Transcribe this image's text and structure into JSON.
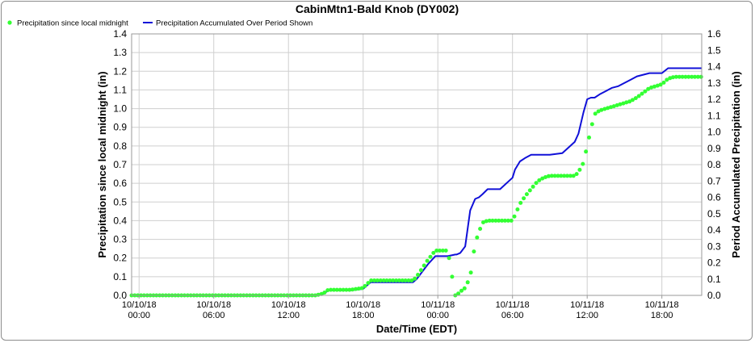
{
  "chart_data": {
    "type": "line",
    "title": "CabinMtn1-Bald Knob (DY002)",
    "xlabel": "Date/Time (EDT)",
    "ylabel_left": "Precipitation since local midnight (in)",
    "ylabel_right": "Period Accumulated Precipitation (in)",
    "ylim_left": [
      0,
      1.4
    ],
    "ylim_right": [
      0,
      1.6
    ],
    "yticks_left": [
      "0.0",
      "0.1",
      "0.2",
      "0.3",
      "0.4",
      "0.5",
      "0.6",
      "0.7",
      "0.8",
      "0.9",
      "1.0",
      "1.1",
      "1.2",
      "1.3",
      "1.4"
    ],
    "yticks_right": [
      "0.0",
      "0.1",
      "0.2",
      "0.3",
      "0.4",
      "0.5",
      "0.6",
      "0.7",
      "0.8",
      "0.9",
      "1.0",
      "1.1",
      "1.2",
      "1.3",
      "1.4",
      "1.5",
      "1.6"
    ],
    "xlim_hours": [
      -0.6,
      45.2
    ],
    "xticks": [
      {
        "hour": 0,
        "date": "10/10/18",
        "time": "00:00"
      },
      {
        "hour": 6,
        "date": "10/10/18",
        "time": "06:00"
      },
      {
        "hour": 12,
        "date": "10/10/18",
        "time": "12:00"
      },
      {
        "hour": 18,
        "date": "10/10/18",
        "time": "18:00"
      },
      {
        "hour": 24,
        "date": "10/11/18",
        "time": "00:00"
      },
      {
        "hour": 30,
        "date": "10/11/18",
        "time": "06:00"
      },
      {
        "hour": 36,
        "date": "10/11/18",
        "time": "12:00"
      },
      {
        "hour": 42,
        "date": "10/11/18",
        "time": "18:00"
      }
    ],
    "grid": true,
    "legend_position": "top-left",
    "series": [
      {
        "name": "Precipitation since local midnight",
        "axis": "left",
        "style": "points",
        "color": "#33ff33",
        "x": [
          -0.6,
          0,
          3,
          6,
          9,
          14.2,
          14.8,
          15.2,
          16,
          17,
          18,
          18.3,
          18.6,
          19,
          20,
          21,
          22,
          22.3,
          22.7,
          23.2,
          23.8,
          24,
          24.4,
          24.8,
          25.4,
          25.5,
          25.8,
          26.2,
          26.6,
          27,
          27.3,
          27.6,
          28,
          28.5,
          29,
          30,
          30.2,
          30.6,
          31,
          31.5,
          32,
          32.5,
          33,
          34,
          35,
          35.3,
          35.7,
          36,
          36.3,
          36.6,
          37,
          37.5,
          38,
          38.5,
          39,
          39.5,
          40,
          41,
          42,
          42.5,
          43,
          44,
          45.2
        ],
        "y": [
          0,
          0,
          0,
          0,
          0,
          0,
          0.01,
          0.03,
          0.03,
          0.03,
          0.04,
          0.06,
          0.08,
          0.08,
          0.08,
          0.08,
          0.08,
          0.1,
          0.14,
          0.19,
          0.24,
          0.24,
          0.24,
          0.24,
          0,
          0,
          0.02,
          0.04,
          0.1,
          0.28,
          0.34,
          0.39,
          0.4,
          0.4,
          0.4,
          0.4,
          0.43,
          0.49,
          0.53,
          0.57,
          0.61,
          0.63,
          0.64,
          0.64,
          0.64,
          0.66,
          0.71,
          0.8,
          0.89,
          0.97,
          0.99,
          1.0,
          1.01,
          1.02,
          1.03,
          1.04,
          1.06,
          1.11,
          1.13,
          1.16,
          1.17,
          1.17,
          1.17
        ]
      },
      {
        "name": "Precipitation Accumulated Over Period Shown",
        "axis": "right",
        "style": "line",
        "color": "#1010d8",
        "x": [
          -0.6,
          0,
          3,
          6,
          9,
          14.2,
          14.8,
          15.2,
          16,
          17,
          18,
          18.3,
          18.6,
          19,
          20,
          21,
          22,
          22.3,
          22.7,
          23.2,
          23.8,
          24,
          24.4,
          24.8,
          25.4,
          25.5,
          25.8,
          26.2,
          26.6,
          27,
          27.3,
          27.6,
          28,
          28.5,
          29,
          30,
          30.2,
          30.6,
          31,
          31.5,
          32,
          32.5,
          33,
          34,
          35,
          35.3,
          35.7,
          36,
          36.3,
          36.6,
          37,
          37.5,
          38,
          38.5,
          39,
          39.5,
          40,
          41,
          42,
          42.5,
          43,
          44,
          45.2
        ],
        "y": [
          0,
          0,
          0,
          0,
          0,
          0,
          0.01,
          0.03,
          0.03,
          0.03,
          0.04,
          0.06,
          0.08,
          0.08,
          0.08,
          0.08,
          0.08,
          0.1,
          0.14,
          0.19,
          0.24,
          0.24,
          0.24,
          0.24,
          0.25,
          0.25,
          0.26,
          0.3,
          0.52,
          0.59,
          0.6,
          0.62,
          0.65,
          0.65,
          0.65,
          0.72,
          0.77,
          0.82,
          0.84,
          0.86,
          0.86,
          0.86,
          0.86,
          0.87,
          0.94,
          0.99,
          1.12,
          1.2,
          1.21,
          1.21,
          1.23,
          1.25,
          1.27,
          1.28,
          1.3,
          1.32,
          1.34,
          1.36,
          1.36,
          1.39,
          1.39,
          1.39,
          1.39
        ]
      }
    ]
  }
}
